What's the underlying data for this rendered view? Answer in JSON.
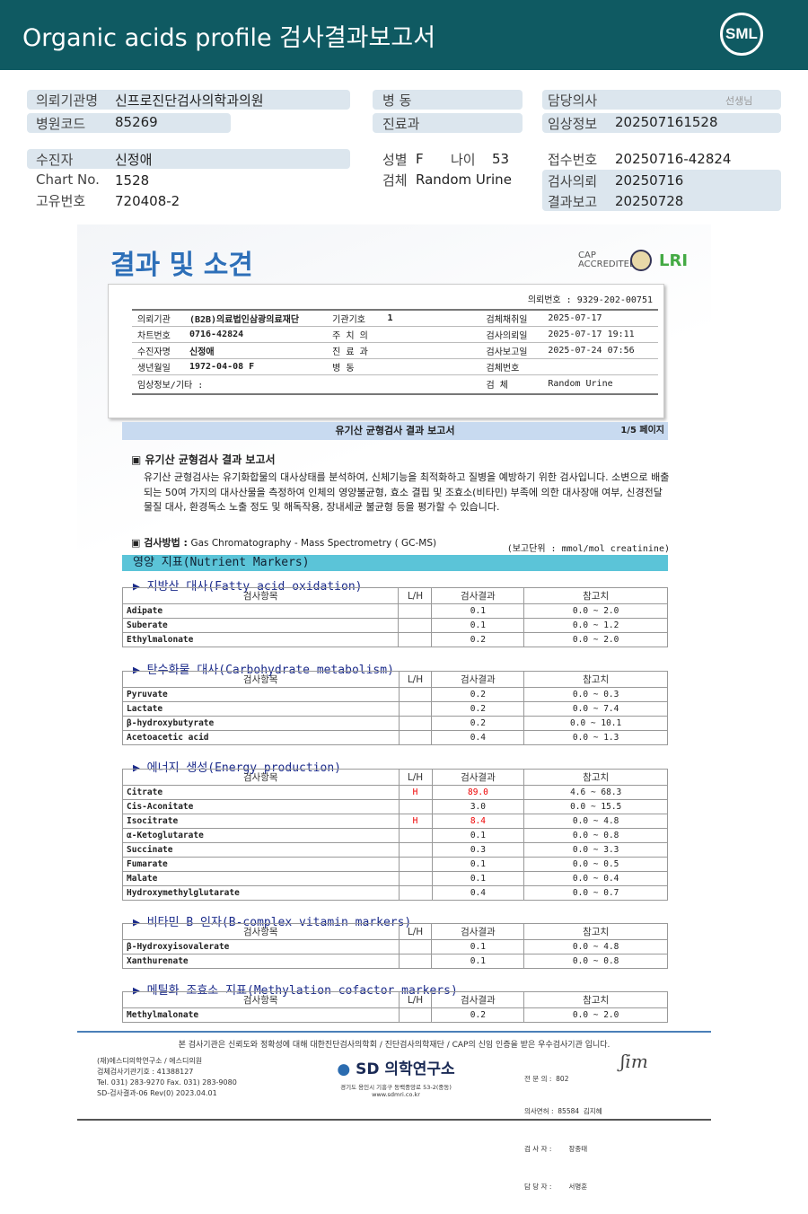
{
  "header": {
    "title": "Organic acids profile 검사결과보고서",
    "logo": "SML"
  },
  "patient": {
    "institution_label": "의뢰기관명",
    "institution": "신프로진단검사의학과의원",
    "hospital_code_label": "병원코드",
    "hospital_code": "85269",
    "ward_label": "병 동",
    "dept_label": "진료과",
    "doctor_label": "담당의사",
    "doctor_suffix": "선생님",
    "clinical_label": "임상정보",
    "clinical": "202507161528",
    "name_label": "수진자",
    "name": "신정애",
    "chart_label": "Chart No.",
    "chart": "1528",
    "id_label": "고유번호",
    "id": "720408-2",
    "sex_label": "성별",
    "sex": "F",
    "age_label": "나이",
    "age": "53",
    "specimen_label": "검체",
    "specimen": "Random Urine",
    "receipt_label": "접수번호",
    "receipt": "20250716-42824",
    "request_label": "검사의뢰",
    "request": "20250716",
    "report_label": "결과보고",
    "report": "20250728"
  },
  "report": {
    "title": "결과 및 소견",
    "badges": {
      "cap": "CAP ACCREDITED",
      "lri": "LRI"
    },
    "box": {
      "req_no_label": "의뢰번호",
      "req_no": "9329-202-00751",
      "rows": [
        [
          "의뢰기관",
          "(B2B)의료법인삼광의료재단",
          "기관기호",
          "1",
          "검체채취일",
          "2025-07-17"
        ],
        [
          "차트번호",
          "0716-42824",
          "주 치 의",
          "",
          "검사의뢰일",
          "2025-07-17 19:11"
        ],
        [
          "수진자명",
          "신정애",
          "진 료 과",
          "",
          "검사보고일",
          "2025-07-24 07:56"
        ],
        [
          "생년월일",
          "1972-04-08   F",
          "병    동",
          "",
          "검체번호",
          ""
        ]
      ],
      "clinical_label": "임상정보/기타 :",
      "specimen_label": "검    체",
      "specimen": "Random Urine"
    },
    "bar_title": "유기산 균형검사 결과 보고서",
    "page": "1/5 페이지",
    "intro_title": "유기산 균형검사 결과 보고서",
    "intro_text": "유기산 균형검사는 유기화합물의 대사상태를 분석하여, 신체기능을 최적화하고 질병을 예방하기 위한 검사입니다. 소변으로 배출되는 50여 가지의 대사산물을 측정하여 인체의 영양불균형, 효소 결핍 및 조효소(비타민) 부족에 의한 대사장애 여부, 신경전달물질 대사, 환경독소 노출 정도 및 해독작용, 장내세균 불균형 등을 평가할 수 있습니다.",
    "method_label": "검사방법 :",
    "method": "Gas Chromatography  - Mass Spectrometry ( GC-MS)",
    "unit": "(보고단위 : mmol/mol creatinine)",
    "category": "영양 지표(Nutrient Markers)",
    "columns": [
      "검사항목",
      "L/H",
      "검사결과",
      "참고치"
    ],
    "sections": [
      {
        "title": "▶ 지방산 대사(Fatty acid oxidation)",
        "rows": [
          [
            "Adipate",
            "",
            "0.1",
            "0.0 ~ 2.0"
          ],
          [
            "Suberate",
            "",
            "0.1",
            "0.0 ~ 1.2"
          ],
          [
            "Ethylmalonate",
            "",
            "0.2",
            "0.0 ~ 2.0"
          ]
        ]
      },
      {
        "title": "▶ 탄수화물 대사(Carbohydrate metabolism)",
        "rows": [
          [
            "Pyruvate",
            "",
            "0.2",
            "0.0 ~ 0.3"
          ],
          [
            "Lactate",
            "",
            "0.2",
            "0.0 ~ 7.4"
          ],
          [
            "β-hydroxybutyrate",
            "",
            "0.2",
            "0.0 ~ 10.1"
          ],
          [
            "Acetoacetic acid",
            "",
            "0.4",
            "0.0 ~ 1.3"
          ]
        ]
      },
      {
        "title": "▶ 에너지 생성(Energy production)",
        "rows": [
          [
            "Citrate",
            "H",
            "89.0",
            "4.6 ~ 68.3"
          ],
          [
            "Cis-Aconitate",
            "",
            "3.0",
            "0.0 ~ 15.5"
          ],
          [
            "Isocitrate",
            "H",
            "8.4",
            "0.0 ~ 4.8"
          ],
          [
            "α-Ketoglutarate",
            "",
            "0.1",
            "0.0 ~ 0.8"
          ],
          [
            "Succinate",
            "",
            "0.3",
            "0.0 ~ 3.3"
          ],
          [
            "Fumarate",
            "",
            "0.1",
            "0.0 ~ 0.5"
          ],
          [
            "Malate",
            "",
            "0.1",
            "0.0 ~ 0.4"
          ],
          [
            "Hydroxymethylglutarate",
            "",
            "0.4",
            "0.0 ~ 0.7"
          ]
        ]
      },
      {
        "title": "▶ 비타민 B 인자(B-complex vitamin markers)",
        "rows": [
          [
            "β-Hydroxyisovalerate",
            "",
            "0.1",
            "0.0 ~ 4.8"
          ],
          [
            "Xanthurenate",
            "",
            "0.1",
            "0.0 ~ 0.8"
          ]
        ]
      },
      {
        "title": "▶ 메틸화 조효소 지표(Methylation cofactor markers)",
        "rows": [
          [
            "Methylmalonate",
            "",
            "0.2",
            "0.0 ~ 2.0"
          ]
        ]
      }
    ],
    "footer": {
      "note": "본 검사기관은 신뢰도와 정확성에 대해 대한진단검사의학회 / 진단검사의학재단 / CAP의 신임 인증을 받은 우수검사기관 입니다.",
      "left": [
        "(재)에스디의학연구소 / 에스디의원",
        "검체검사기관기호 : 41388127",
        "Tel. 031) 283-9270      Fax. 031) 283-9080",
        "SD-검사결과-06 Rev(0) 2023.04.01"
      ],
      "brand": "SD 의학연구소",
      "address": "경기도 용인시 기흥구 동백중앙로 53-2(중동)",
      "web": "www.sdmri.co.kr",
      "right": [
        "전 문 의 :  802",
        "의사면허 :  85584  김지혜",
        "검 사 자 :        장종태",
        "담 당 자 :        서명훈"
      ]
    }
  },
  "colors": {
    "header": "#0f5a62",
    "pill": "#dce6ee",
    "category": "#5bc4d8",
    "high": "#e00000"
  }
}
